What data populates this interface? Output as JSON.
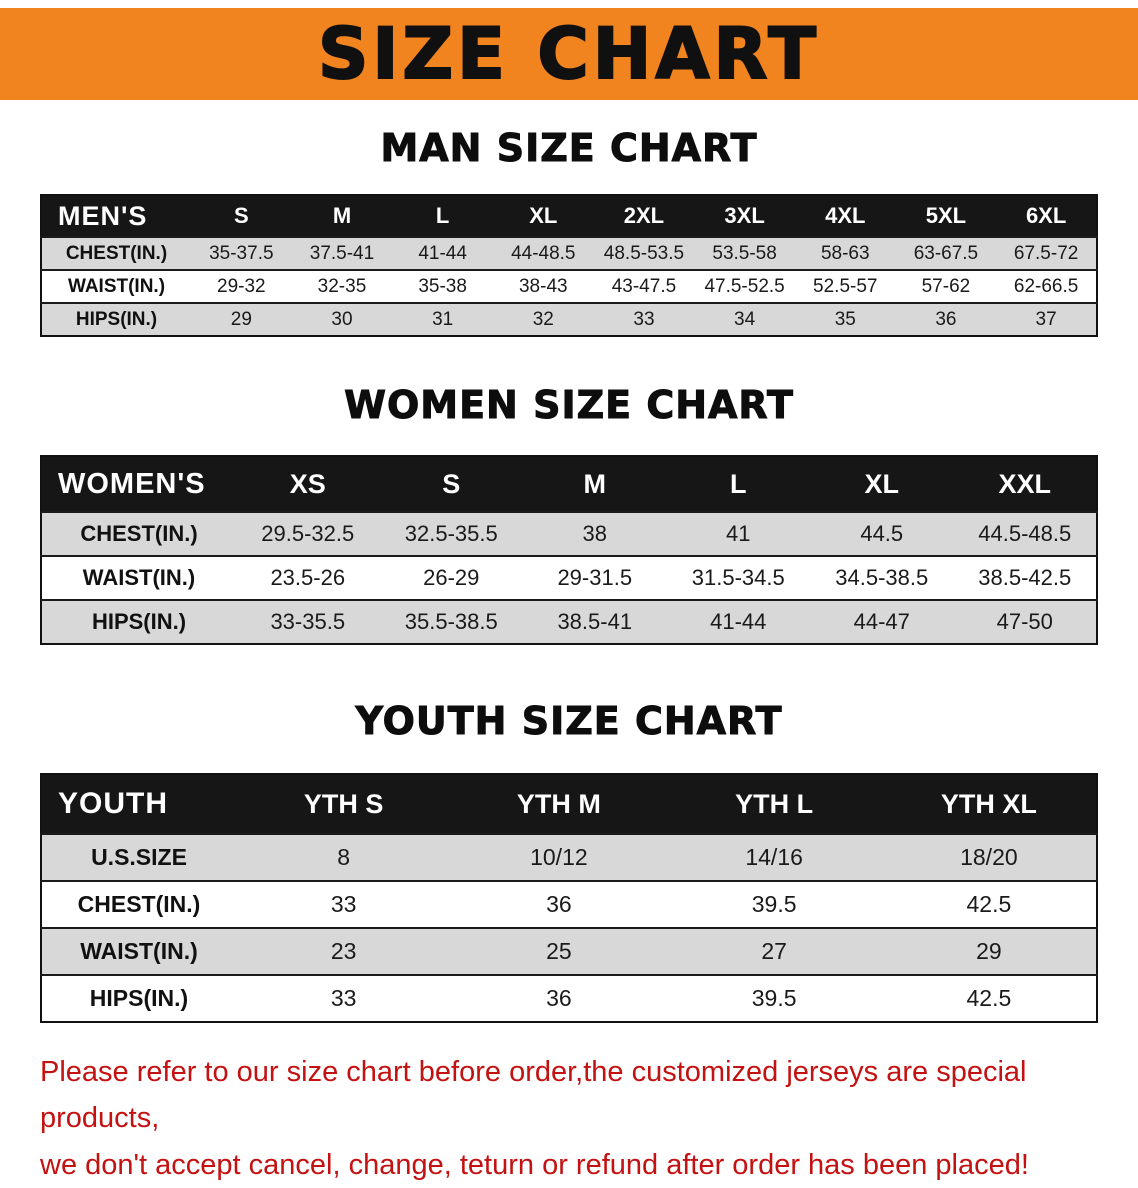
{
  "banner": {
    "title": "SIZE CHART"
  },
  "colors": {
    "banner_bg": "#F28420",
    "table_header_bg": "#161616",
    "row_gray": "#D8D8D8",
    "footer_red": "#C41111"
  },
  "sections": [
    {
      "id": "men",
      "heading": "MAN SIZE CHART",
      "corner_label": "MEN'S",
      "columns": [
        "S",
        "M",
        "L",
        "XL",
        "2XL",
        "3XL",
        "4XL",
        "5XL",
        "6XL"
      ],
      "rows": [
        {
          "label": "CHEST(IN.)",
          "values": [
            "35-37.5",
            "37.5-41",
            "41-44",
            "44-48.5",
            "48.5-53.5",
            "53.5-58",
            "58-63",
            "63-67.5",
            "67.5-72"
          ]
        },
        {
          "label": "WAIST(IN.)",
          "values": [
            "29-32",
            "32-35",
            "35-38",
            "38-43",
            "43-47.5",
            "47.5-52.5",
            "52.5-57",
            "57-62",
            "62-66.5"
          ]
        },
        {
          "label": "HIPS(IN.)",
          "values": [
            "29",
            "30",
            "31",
            "32",
            "33",
            "34",
            "35",
            "36",
            "37"
          ]
        }
      ]
    },
    {
      "id": "women",
      "heading": "WOMEN SIZE CHART",
      "corner_label": "WOMEN'S",
      "columns": [
        "XS",
        "S",
        "M",
        "L",
        "XL",
        "XXL"
      ],
      "rows": [
        {
          "label": "CHEST(IN.)",
          "values": [
            "29.5-32.5",
            "32.5-35.5",
            "38",
            "41",
            "44.5",
            "44.5-48.5"
          ]
        },
        {
          "label": "WAIST(IN.)",
          "values": [
            "23.5-26",
            "26-29",
            "29-31.5",
            "31.5-34.5",
            "34.5-38.5",
            "38.5-42.5"
          ]
        },
        {
          "label": "HIPS(IN.)",
          "values": [
            "33-35.5",
            "35.5-38.5",
            "38.5-41",
            "41-44",
            "44-47",
            "47-50"
          ]
        }
      ]
    },
    {
      "id": "youth",
      "heading": "YOUTH SIZE CHART",
      "corner_label": "YOUTH",
      "columns": [
        "YTH S",
        "YTH M",
        "YTH L",
        "YTH XL"
      ],
      "rows": [
        {
          "label": "U.S.SIZE",
          "values": [
            "8",
            "10/12",
            "14/16",
            "18/20"
          ]
        },
        {
          "label": "CHEST(IN.)",
          "values": [
            "33",
            "36",
            "39.5",
            "42.5"
          ]
        },
        {
          "label": "WAIST(IN.)",
          "values": [
            "23",
            "25",
            "27",
            "29"
          ]
        },
        {
          "label": "HIPS(IN.)",
          "values": [
            "33",
            "36",
            "39.5",
            "42.5"
          ]
        }
      ]
    }
  ],
  "footer": {
    "line1": "Please refer to our size chart before order,the customized jerseys are special products,",
    "line2": "we don't accept cancel, change, teturn or refund after order has been placed!"
  }
}
